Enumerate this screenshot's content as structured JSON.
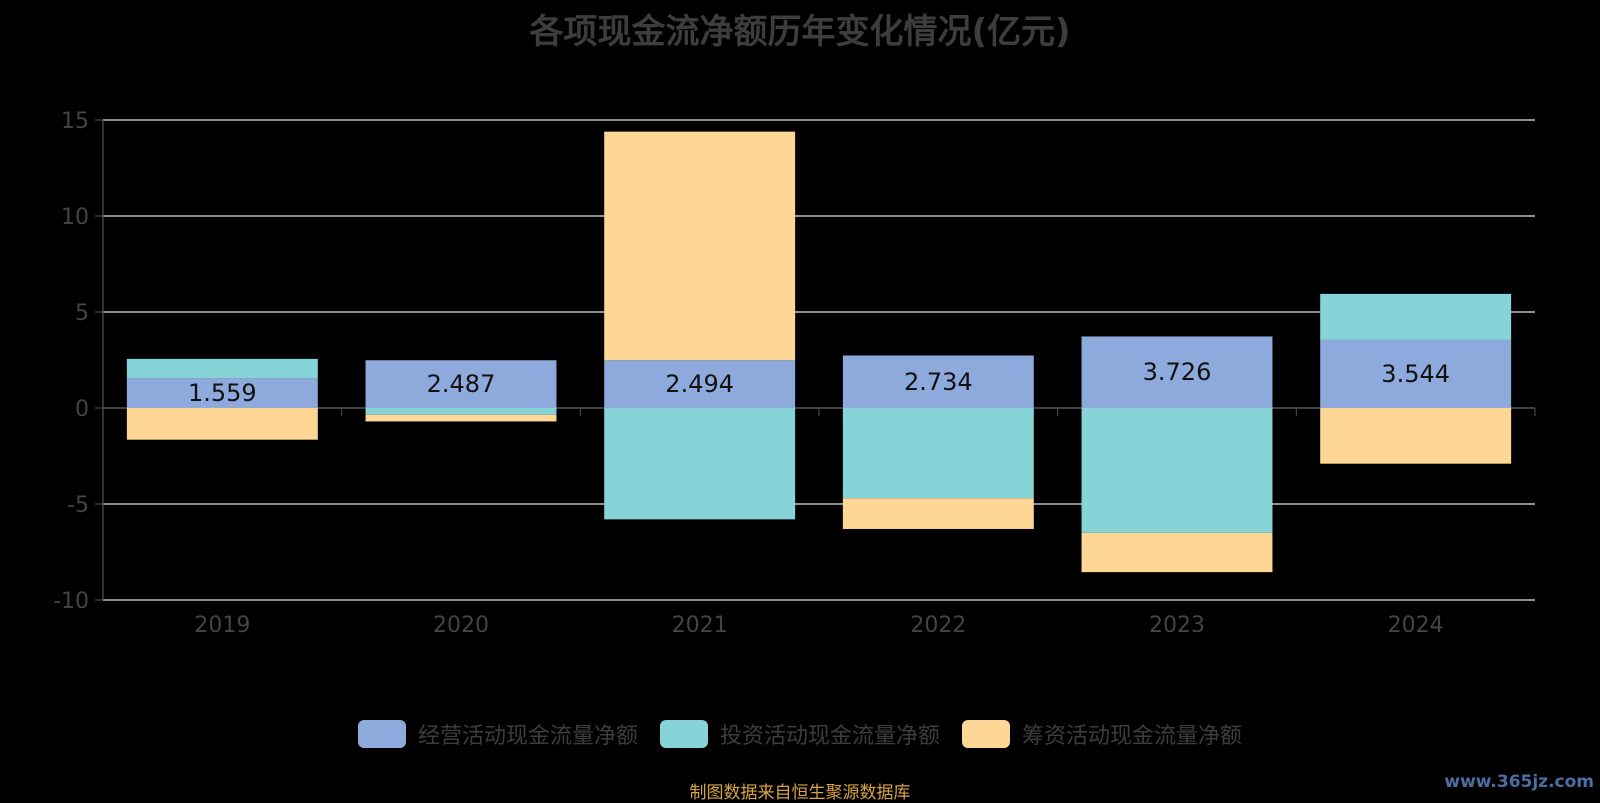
{
  "title": "各项现金流净额历年变化情况(亿元)",
  "source": "制图数据来自恒生聚源数据库",
  "watermark": "www.365jz.com",
  "colors": {
    "background": "#000000",
    "operating": "#8eaadc",
    "investing": "#86d4d8",
    "financing": "#fed696",
    "grid": "#e6e6e6",
    "axis_text": "#444444"
  },
  "chart_data": {
    "type": "bar",
    "stacked": true,
    "categories": [
      "2019",
      "2020",
      "2021",
      "2022",
      "2023",
      "2024"
    ],
    "ylim": [
      -10,
      15
    ],
    "yticks": [
      -10,
      -5,
      0,
      5,
      10,
      15
    ],
    "grid": true,
    "legend": "bottom",
    "series": [
      {
        "name": "经营活动现金流量净额",
        "values": [
          1.559,
          2.487,
          2.494,
          2.734,
          3.726,
          3.544
        ],
        "color": "#8eaadc"
      },
      {
        "name": "投资活动现金流量净额",
        "values": [
          1.0,
          -0.35,
          -5.8,
          -4.7,
          -6.5,
          2.4
        ],
        "color": "#86d4d8"
      },
      {
        "name": "筹资活动现金流量净额",
        "values": [
          -1.65,
          -0.35,
          11.9,
          -1.6,
          -2.05,
          -2.9
        ],
        "color": "#fed696"
      }
    ],
    "data_labels": [
      "1.559",
      "2.487",
      "2.494",
      "2.734",
      "3.726",
      "3.544"
    ]
  }
}
